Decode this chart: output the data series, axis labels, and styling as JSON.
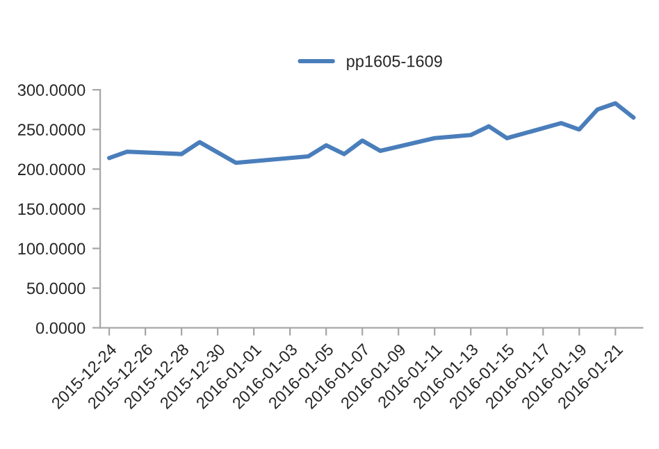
{
  "chart_data": {
    "type": "line",
    "legend": "top",
    "grid": false,
    "marker": "none",
    "line_style": "solid",
    "x": [
      "2015-12-24",
      "2015-12-25",
      "2015-12-28",
      "2015-12-29",
      "2015-12-31",
      "2016-01-04",
      "2016-01-05",
      "2016-01-06",
      "2016-01-07",
      "2016-01-08",
      "2016-01-11",
      "2016-01-12",
      "2016-01-13",
      "2016-01-14",
      "2016-01-15",
      "2016-01-18",
      "2016-01-19",
      "2016-01-20",
      "2016-01-21",
      "2016-01-22"
    ],
    "series": [
      {
        "name": "pp1605-1609",
        "color": "#4a7ebb",
        "values": [
          214,
          222,
          219,
          234,
          208,
          216,
          230,
          219,
          236,
          223,
          239,
          241,
          243,
          254,
          239,
          258,
          250,
          275,
          283,
          265
        ]
      }
    ],
    "xlim": [
      "2015-12-23T12:00",
      "2016-01-22T12:00"
    ],
    "xticks": [
      "2015-12-24",
      "2015-12-26",
      "2015-12-28",
      "2015-12-30",
      "2016-01-01",
      "2016-01-03",
      "2016-01-05",
      "2016-01-07",
      "2016-01-09",
      "2016-01-11",
      "2016-01-13",
      "2016-01-15",
      "2016-01-17",
      "2016-01-19",
      "2016-01-21"
    ],
    "ylim": [
      0,
      300
    ],
    "yticks": [
      {
        "value": 0,
        "label": "0.0000"
      },
      {
        "value": 50,
        "label": "50.0000"
      },
      {
        "value": 100,
        "label": "100.0000"
      },
      {
        "value": 150,
        "label": "150.0000"
      },
      {
        "value": 200,
        "label": "200.0000"
      },
      {
        "value": 250,
        "label": "250.0000"
      },
      {
        "value": 300,
        "label": "300.0000"
      }
    ]
  }
}
